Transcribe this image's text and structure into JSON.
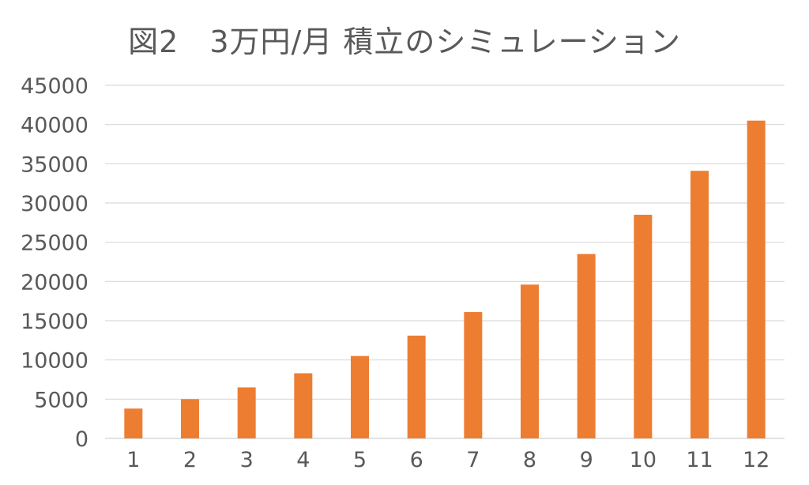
{
  "chart_data": {
    "type": "bar",
    "title": "図2　3万円/月 積立のシミュレーション",
    "categories": [
      "1",
      "2",
      "3",
      "4",
      "5",
      "6",
      "7",
      "8",
      "9",
      "10",
      "11",
      "12"
    ],
    "values": [
      3800,
      5000,
      6500,
      8300,
      10500,
      13100,
      16100,
      19600,
      23500,
      28500,
      34100,
      40500
    ],
    "ylim": [
      0,
      45000
    ],
    "yticks": [
      "0",
      "5000",
      "10000",
      "15000",
      "20000",
      "25000",
      "30000",
      "35000",
      "40000",
      "45000"
    ],
    "xlabel": "",
    "ylabel": "",
    "grid": true,
    "bar_color": "#ED7D31",
    "grid_color": "#D9D9D9",
    "text_color": "#595959"
  }
}
